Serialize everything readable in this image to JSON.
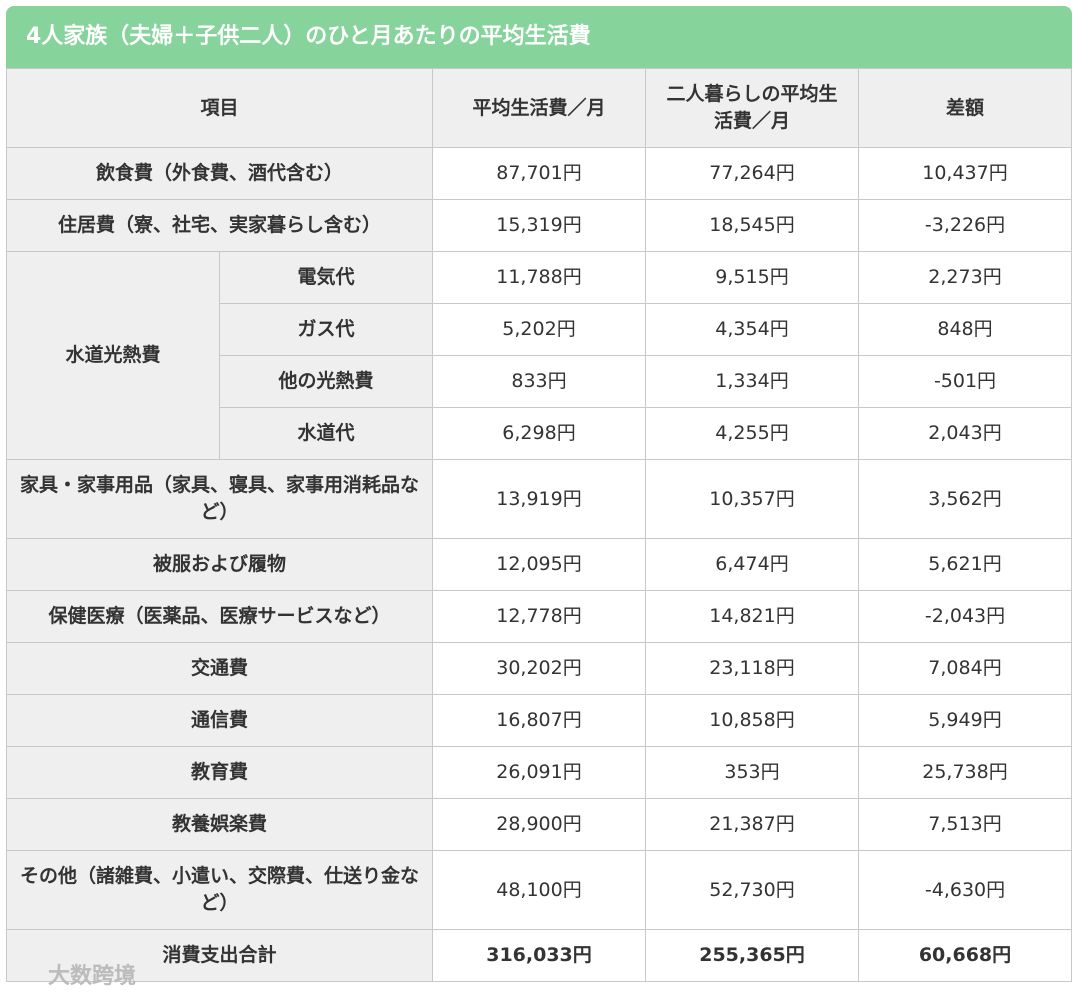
{
  "title": "4人家族（夫婦＋子供二人）のひと月あたりの平均生活費",
  "table": {
    "header": [
      "項目",
      "平均生活費／月",
      "二人暮らしの平均生活費／月",
      "差額"
    ],
    "rows": [
      {
        "label": "飲食費（外食費、酒代含む）",
        "values": [
          "87,701円",
          "77,264円",
          "10,437円"
        ]
      },
      {
        "label": "住居費（寮、社宅、実家暮らし含む）",
        "values": [
          "15,319円",
          "18,545円",
          "-3,226円"
        ]
      },
      {
        "label": "水道光熱費",
        "items": [
          {
            "label": "電気代",
            "values": [
              "11,788円",
              "9,515円",
              "2,273円"
            ]
          },
          {
            "label": "ガス代",
            "values": [
              "5,202円",
              "4,354円",
              "848円"
            ]
          },
          {
            "label": "他の光熱費",
            "values": [
              "833円",
              "1,334円",
              "-501円"
            ]
          },
          {
            "label": "水道代",
            "values": [
              "6,298円",
              "4,255円",
              "2,043円"
            ]
          }
        ]
      },
      {
        "label": "家具・家事用品（家具、寝具、家事用消耗品など）",
        "values": [
          "13,919円",
          "10,357円",
          "3,562円"
        ]
      },
      {
        "label": "被服および履物",
        "values": [
          "12,095円",
          "6,474円",
          "5,621円"
        ]
      },
      {
        "label": "保健医療（医薬品、医療サービスなど）",
        "values": [
          "12,778円",
          "14,821円",
          "-2,043円"
        ]
      },
      {
        "label": "交通費",
        "values": [
          "30,202円",
          "23,118円",
          "7,084円"
        ]
      },
      {
        "label": "通信費",
        "values": [
          "16,807円",
          "10,858円",
          "5,949円"
        ]
      },
      {
        "label": "教育費",
        "values": [
          "26,091円",
          "353円",
          "25,738円"
        ]
      },
      {
        "label": "教養娯楽費",
        "values": [
          "28,900円",
          "21,387円",
          "7,513円"
        ]
      },
      {
        "label": "その他（諸雑費、小遣い、交際費、仕送り金など）",
        "values": [
          "48,100円",
          "52,730円",
          "-4,630円"
        ]
      },
      {
        "label": "消費支出合計",
        "values": [
          "316,033円",
          "255,365円",
          "60,668円"
        ]
      }
    ]
  },
  "watermark": "大数跨境"
}
